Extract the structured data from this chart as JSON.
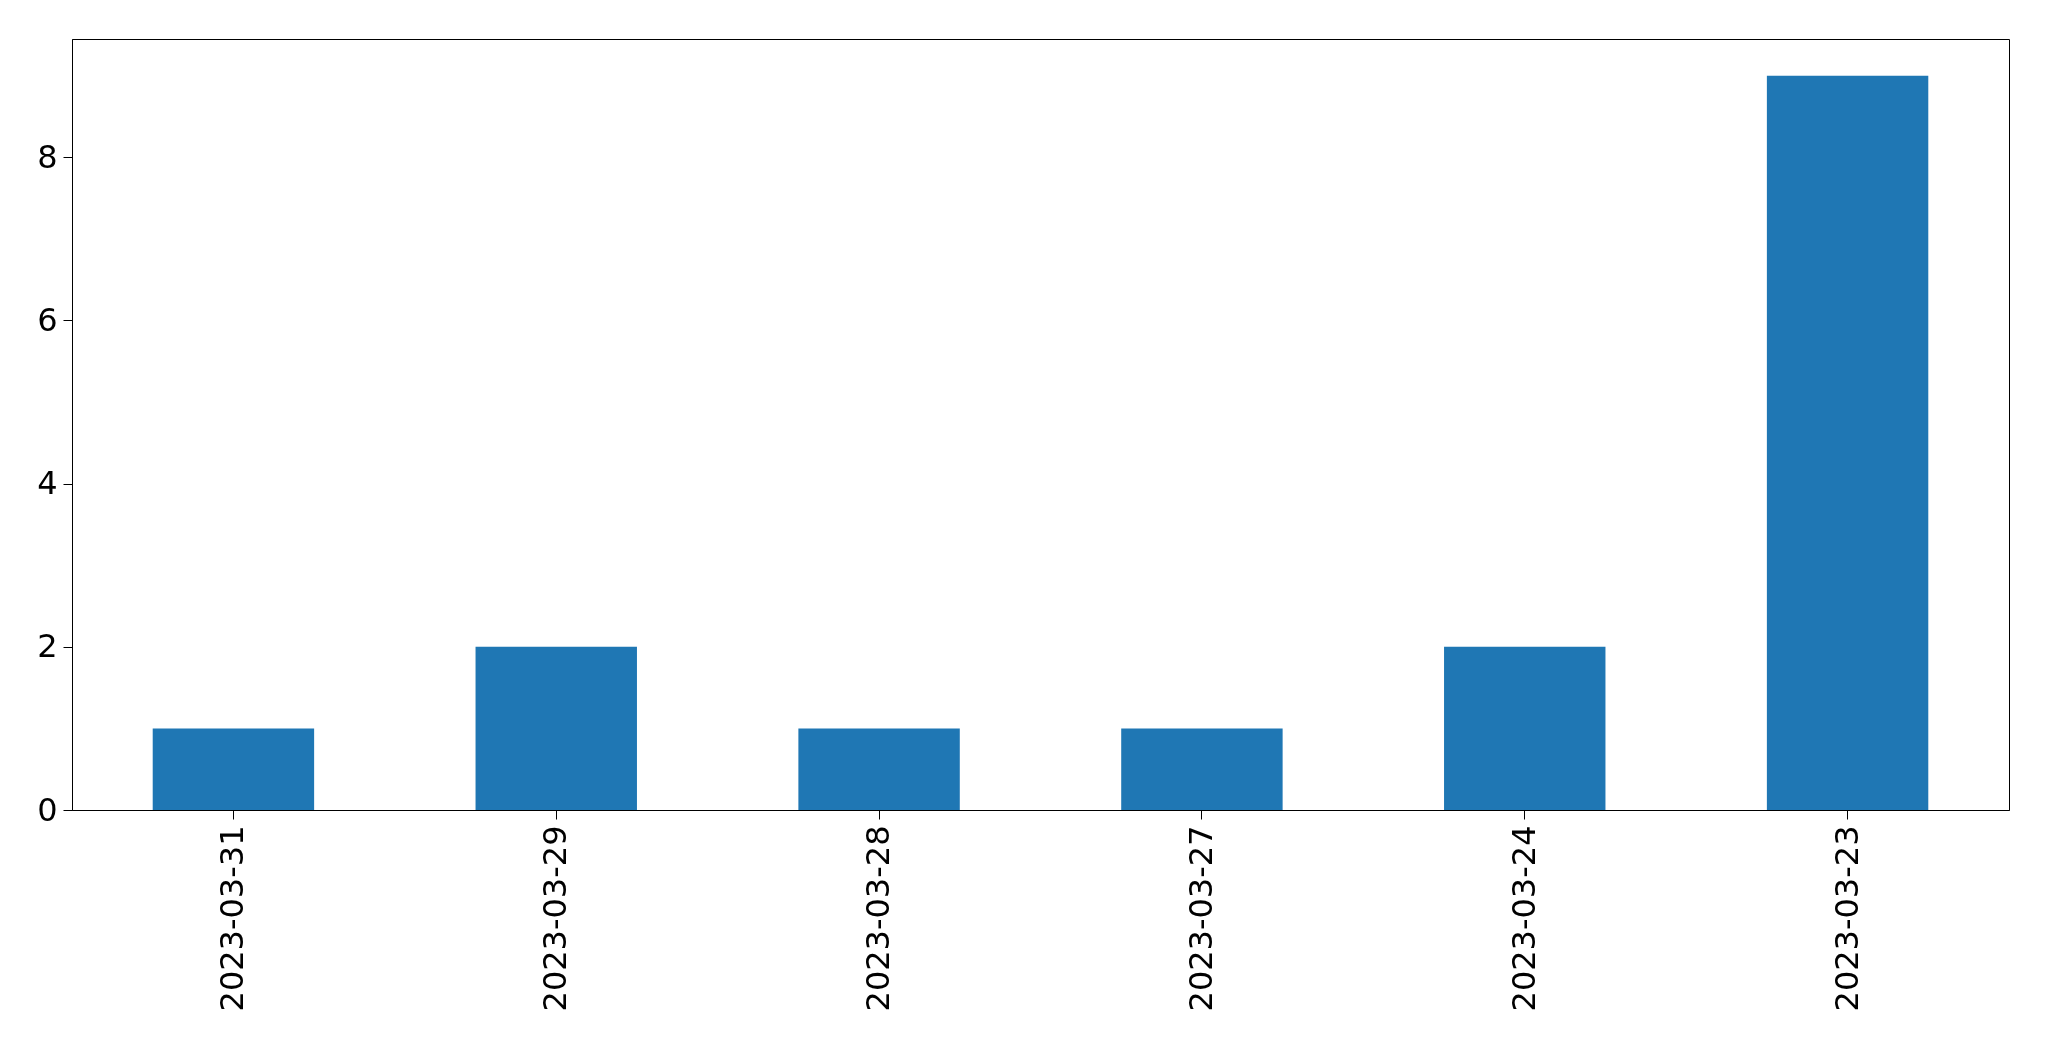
{
  "chart_data": {
    "type": "bar",
    "categories": [
      "2023-03-31",
      "2023-03-29",
      "2023-03-28",
      "2023-03-27",
      "2023-03-24",
      "2023-03-23"
    ],
    "values": [
      1,
      2,
      1,
      1,
      2,
      9
    ],
    "color": "#1f77b4",
    "ylim": [
      0,
      9.45
    ],
    "yticks": [
      0,
      2,
      4,
      6,
      8
    ],
    "grid": false
  }
}
